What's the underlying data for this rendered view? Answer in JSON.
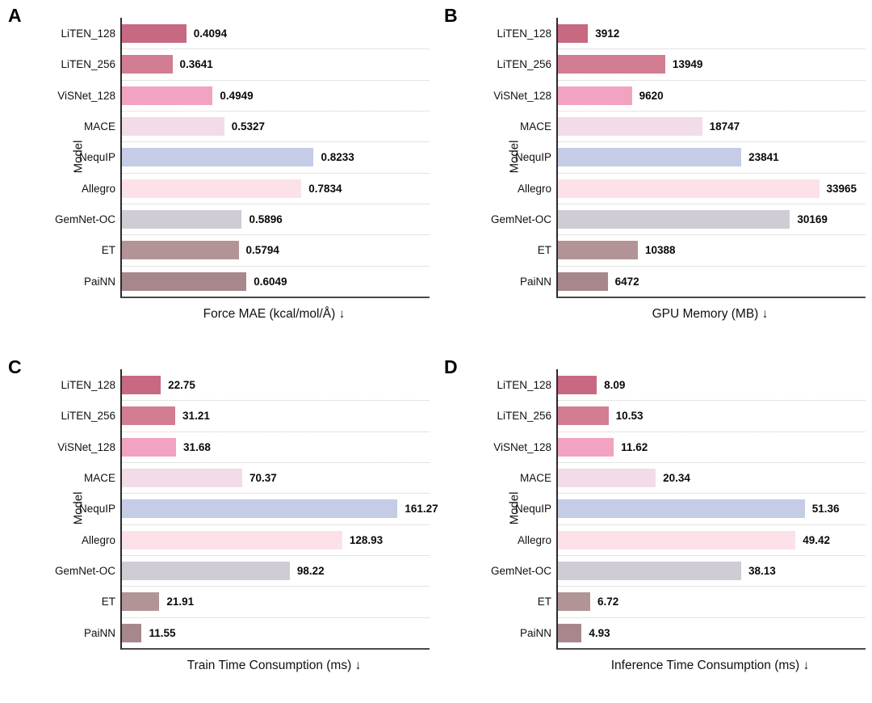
{
  "figure": {
    "background": "#ffffff",
    "grid_style": "horizontal-dotted",
    "gridline_color": "#c9c9c9",
    "spine_color": "#2b2b2b",
    "categories": [
      "LiTEN_128",
      "LiTEN_256",
      "ViSNet_128",
      "MACE",
      "NequIP",
      "Allegro",
      "GemNet-OC",
      "ET",
      "PaiNN"
    ],
    "bar_colors": [
      "#c86982",
      "#d27d91",
      "#f2a3c1",
      "#f2dce7",
      "#c4cce6",
      "#fce2e8",
      "#d0ccd6",
      "#b29497",
      "#a8878c"
    ]
  },
  "chart_data": [
    {
      "panel": "A",
      "type": "bar",
      "orientation": "horizontal",
      "title": "",
      "xlabel": "Force MAE (kcal/mol/Å) ↓",
      "ylabel": "Model",
      "legend": "none",
      "grid": "horizontal-dotted",
      "categories": [
        "LiTEN_128",
        "LiTEN_256",
        "ViSNet_128",
        "MACE",
        "NequIP",
        "Allegro",
        "GemNet-OC",
        "ET",
        "PaiNN"
      ],
      "values": [
        0.4094,
        0.3641,
        0.4949,
        0.5327,
        0.8233,
        0.7834,
        0.5896,
        0.5794,
        0.6049
      ],
      "value_labels": [
        "0.4094",
        "0.3641",
        "0.4949",
        "0.5327",
        "0.8233",
        "0.7834",
        "0.5896",
        "0.5794",
        "0.6049"
      ],
      "xlim": [
        0.2,
        1.2
      ]
    },
    {
      "panel": "B",
      "type": "bar",
      "orientation": "horizontal",
      "title": "",
      "xlabel": "GPU Memory (MB) ↓",
      "ylabel": "Model",
      "legend": "none",
      "grid": "horizontal-dotted",
      "categories": [
        "LiTEN_128",
        "LiTEN_256",
        "ViSNet_128",
        "MACE",
        "NequIP",
        "Allegro",
        "GemNet-OC",
        "ET",
        "PaiNN"
      ],
      "values": [
        3912,
        13949,
        9620,
        18747,
        23841,
        33965,
        30169,
        10388,
        6472
      ],
      "value_labels": [
        "3912",
        "13949",
        "9620",
        "18747",
        "23841",
        "33965",
        "30169",
        "10388",
        "6472"
      ],
      "xlim": [
        0,
        40000
      ]
    },
    {
      "panel": "C",
      "type": "bar",
      "orientation": "horizontal",
      "title": "",
      "xlabel": "Train Time Consumption (ms) ↓",
      "ylabel": "Model",
      "legend": "none",
      "grid": "horizontal-dotted",
      "categories": [
        "LiTEN_128",
        "LiTEN_256",
        "ViSNet_128",
        "MACE",
        "NequIP",
        "Allegro",
        "GemNet-OC",
        "ET",
        "PaiNN"
      ],
      "values": [
        22.75,
        31.21,
        31.68,
        70.37,
        161.27,
        128.93,
        98.22,
        21.91,
        11.55
      ],
      "value_labels": [
        "22.75",
        "31.21",
        "31.68",
        "70.37",
        "161.27",
        "128.93",
        "98.22",
        "21.91",
        "11.55"
      ],
      "xlim": [
        0,
        180
      ]
    },
    {
      "panel": "D",
      "type": "bar",
      "orientation": "horizontal",
      "title": "",
      "xlabel": "Inference Time Consumption (ms) ↓",
      "ylabel": "Model",
      "legend": "none",
      "grid": "horizontal-dotted",
      "categories": [
        "LiTEN_128",
        "LiTEN_256",
        "ViSNet_128",
        "MACE",
        "NequIP",
        "Allegro",
        "GemNet-OC",
        "ET",
        "PaiNN"
      ],
      "values": [
        8.09,
        10.53,
        11.62,
        20.34,
        51.36,
        49.42,
        38.13,
        6.72,
        4.93
      ],
      "value_labels": [
        "8.09",
        "10.53",
        "11.62",
        "20.34",
        "51.36",
        "49.42",
        "38.13",
        "6.72",
        "4.93"
      ],
      "xlim": [
        0,
        64
      ]
    }
  ]
}
